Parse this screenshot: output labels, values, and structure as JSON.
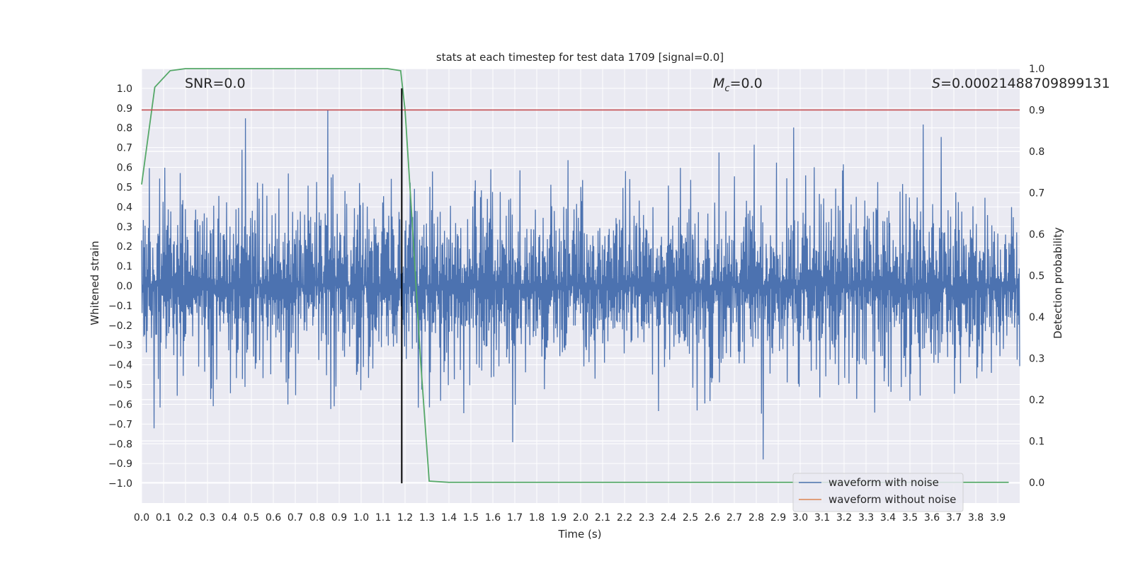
{
  "chart_data": {
    "type": "line",
    "title": "stats at each timestep for test data 1709 [signal=0.0]",
    "xlabel": "Time (s)",
    "ylabel_left": "Whitened strain",
    "ylabel_right": "Detection probability",
    "xlim": [
      0.0,
      4.0
    ],
    "ylim_left": [
      -1.1,
      1.1
    ],
    "ylim_right": [
      -0.05,
      1.0
    ],
    "x_ticks": [
      "0.0",
      "0.1",
      "0.2",
      "0.3",
      "0.4",
      "0.5",
      "0.6",
      "0.7",
      "0.8",
      "0.9",
      "1.0",
      "1.1",
      "1.2",
      "1.3",
      "1.4",
      "1.5",
      "1.6",
      "1.7",
      "1.8",
      "1.9",
      "2.0",
      "2.1",
      "2.2",
      "2.3",
      "2.4",
      "2.5",
      "2.6",
      "2.7",
      "2.8",
      "2.9",
      "3.0",
      "3.1",
      "3.2",
      "3.3",
      "3.4",
      "3.5",
      "3.6",
      "3.7",
      "3.8",
      "3.9"
    ],
    "y_ticks_left": [
      "1.0",
      "0.9",
      "0.8",
      "0.7",
      "0.6",
      "0.5",
      "0.4",
      "0.3",
      "0.2",
      "0.1",
      "0.0",
      "−0.1",
      "−0.2",
      "−0.3",
      "−0.4",
      "−0.5",
      "−0.6",
      "−0.7",
      "−0.8",
      "−0.9",
      "−1.0"
    ],
    "y_ticks_right": [
      "1.0",
      "0.9",
      "0.8",
      "0.7",
      "0.6",
      "0.5",
      "0.4",
      "0.3",
      "0.2",
      "0.1",
      "0.0"
    ],
    "annotations": {
      "snr": "SNR=0.0",
      "mc_symbol": "M",
      "mc_sub": "c",
      "mc_value": "=0.0",
      "s_symbol": "S",
      "s_value": "=0.00021488709899131"
    },
    "legend": {
      "position": "lower-right",
      "entries": [
        {
          "label": "waveform with noise",
          "color": "#4c72b0"
        },
        {
          "label": "waveform without noise",
          "color": "#dd8452"
        }
      ]
    },
    "series": [
      {
        "name": "waveform with noise",
        "axis": "left",
        "kind": "noise",
        "std": 0.24,
        "amplitude_range": [
          -1.0,
          1.0
        ],
        "n_points": 2048,
        "color": "#4c72b0"
      },
      {
        "name": "detection probability",
        "axis": "right",
        "color": "#55a868",
        "x": [
          0.0,
          0.06,
          0.13,
          0.2,
          0.3,
          0.5,
          0.8,
          1.0,
          1.12,
          1.18,
          1.2,
          1.23,
          1.27,
          1.31,
          1.4,
          1.6,
          2.0,
          3.0,
          3.95
        ],
        "y": [
          0.72,
          0.955,
          0.995,
          1.0,
          1.0,
          1.0,
          1.0,
          1.0,
          1.0,
          0.995,
          0.9,
          0.65,
          0.3,
          0.003,
          0.0,
          0.0,
          0.0,
          0.0,
          0.0
        ]
      },
      {
        "name": "threshold",
        "axis": "right",
        "kind": "hline",
        "y": 0.9,
        "color": "#c44e52"
      },
      {
        "name": "detection marker",
        "axis": "left",
        "kind": "vline",
        "x": 1.185,
        "y_range": [
          -1.0,
          1.0
        ],
        "color": "#000000"
      }
    ]
  }
}
